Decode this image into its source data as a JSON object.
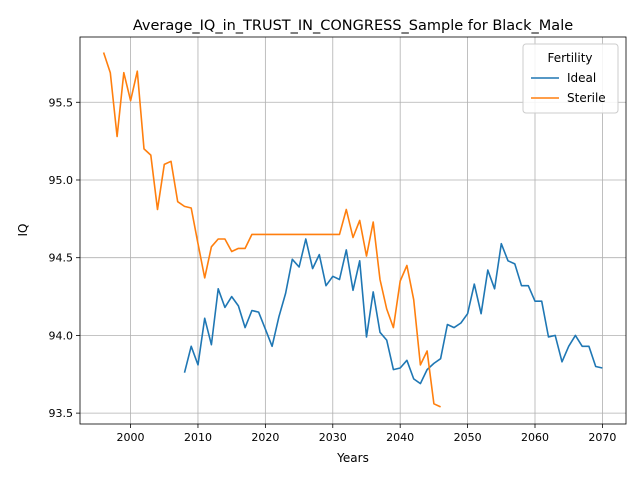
{
  "chart_data": {
    "type": "line",
    "title": "Average_IQ_in_TRUST_IN_CONGRESS_Sample for Black_Male",
    "xlabel": "Years",
    "ylabel": "IQ",
    "xlim": [
      1992.5,
      2073.5
    ],
    "ylim": [
      93.43,
      95.92
    ],
    "xticks": [
      2000,
      2010,
      2020,
      2030,
      2040,
      2050,
      2060,
      2070
    ],
    "yticks": [
      93.5,
      94.0,
      94.5,
      95.0,
      95.5
    ],
    "xtick_labels": [
      "2000",
      "2010",
      "2020",
      "2030",
      "2040",
      "2050",
      "2060",
      "2070"
    ],
    "ytick_labels": [
      "93.5",
      "94.0",
      "94.5",
      "95.0",
      "95.5"
    ],
    "grid": true,
    "legend": {
      "title": "Fertility",
      "placement": "upper right"
    },
    "series": [
      {
        "name": "Ideal",
        "color": "#1f77b4",
        "x": [
          2008,
          2009,
          2010,
          2011,
          2012,
          2013,
          2014,
          2015,
          2016,
          2017,
          2018,
          2019,
          2020,
          2021,
          2022,
          2023,
          2024,
          2025,
          2026,
          2027,
          2028,
          2029,
          2030,
          2031,
          2032,
          2033,
          2034,
          2035,
          2036,
          2037,
          2038,
          2039,
          2040,
          2041,
          2042,
          2043,
          2044,
          2045,
          2046,
          2047,
          2048,
          2049,
          2050,
          2051,
          2052,
          2053,
          2054,
          2055,
          2056,
          2057,
          2058,
          2059,
          2060,
          2061,
          2062,
          2063,
          2064,
          2065,
          2066,
          2067,
          2068,
          2069,
          2070
        ],
        "values": [
          93.76,
          93.93,
          93.81,
          94.11,
          93.94,
          94.3,
          94.18,
          94.25,
          94.19,
          94.05,
          94.16,
          94.15,
          94.04,
          93.93,
          94.12,
          94.27,
          94.49,
          94.44,
          94.62,
          94.43,
          94.52,
          94.32,
          94.38,
          94.36,
          94.55,
          94.29,
          94.48,
          93.99,
          94.28,
          94.02,
          93.97,
          93.78,
          93.79,
          93.84,
          93.72,
          93.69,
          93.78,
          93.82,
          93.85,
          94.07,
          94.05,
          94.08,
          94.14,
          94.33,
          94.14,
          94.42,
          94.3,
          94.59,
          94.48,
          94.46,
          94.32,
          94.32,
          94.22,
          94.22,
          93.99,
          94.0,
          93.83,
          93.93,
          94.0,
          93.93,
          93.93,
          93.8,
          93.79
        ]
      },
      {
        "name": "Sterile",
        "color": "#ff7f0e",
        "x": [
          1996,
          1997,
          1998,
          1999,
          2000,
          2001,
          2002,
          2003,
          2004,
          2005,
          2006,
          2007,
          2008,
          2009,
          2010,
          2011,
          2012,
          2013,
          2014,
          2015,
          2016,
          2017,
          2018,
          2019,
          2020,
          2021,
          2022,
          2023,
          2024,
          2025,
          2026,
          2027,
          2028,
          2029,
          2030,
          2031,
          2032,
          2033,
          2034,
          2035,
          2036,
          2037,
          2038,
          2039,
          2040,
          2041,
          2042,
          2043,
          2044,
          2045,
          2046
        ],
        "values": [
          95.82,
          95.69,
          95.28,
          95.69,
          95.51,
          95.7,
          95.2,
          95.16,
          94.81,
          95.1,
          95.12,
          94.86,
          94.83,
          94.82,
          94.59,
          94.37,
          94.57,
          94.62,
          94.62,
          94.54,
          94.56,
          94.56,
          94.65,
          94.65,
          94.65,
          94.65,
          94.65,
          94.65,
          94.65,
          94.65,
          94.65,
          94.65,
          94.65,
          94.65,
          94.65,
          94.65,
          94.81,
          94.63,
          94.74,
          94.51,
          94.73,
          94.36,
          94.17,
          94.05,
          94.35,
          94.45,
          94.23,
          93.81,
          93.9,
          93.56,
          93.54
        ]
      }
    ]
  }
}
